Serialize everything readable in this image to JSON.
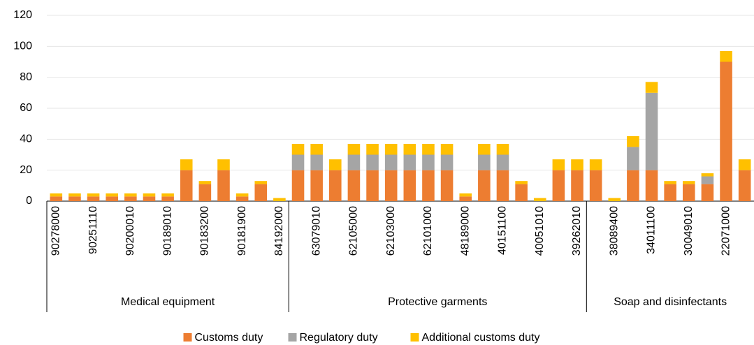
{
  "chart_data": {
    "type": "stacked_bar",
    "groups": [
      {
        "name": "Medical equipment",
        "categories": [
          "90278000",
          null,
          "90251110",
          null,
          "90200010",
          null,
          "90189010",
          null,
          "90183200",
          null,
          "90181900",
          null,
          "84192000"
        ]
      },
      {
        "name": "Protective garments",
        "categories": [
          null,
          "63079010",
          null,
          "62105000",
          null,
          "62103000",
          null,
          "62101000",
          null,
          "48189000",
          null,
          "40151100",
          null,
          "40051010",
          null,
          "39262010"
        ]
      },
      {
        "name": "Soap and disinfectants",
        "categories": [
          null,
          "38089400",
          null,
          "34011100",
          null,
          "30049010",
          null,
          "22071000",
          null
        ]
      }
    ],
    "series": [
      {
        "name": "Customs duty",
        "color": "#ED7D31",
        "values": [
          3,
          3,
          3,
          3,
          3,
          3,
          3,
          20,
          11,
          20,
          3,
          11,
          0,
          20,
          20,
          20,
          20,
          20,
          20,
          20,
          20,
          20,
          3,
          20,
          20,
          11,
          0,
          20,
          20,
          20,
          0,
          20,
          20,
          11,
          11,
          11,
          90,
          20
        ]
      },
      {
        "name": "Regulatory duty",
        "color": "#A5A5A5",
        "values": [
          0,
          0,
          0,
          0,
          0,
          0,
          0,
          0,
          0,
          0,
          0,
          0,
          0,
          10,
          10,
          0,
          10,
          10,
          10,
          10,
          10,
          10,
          0,
          10,
          10,
          0,
          0,
          0,
          0,
          0,
          0,
          15,
          50,
          0,
          0,
          5,
          0,
          0
        ]
      },
      {
        "name": "Additional customs duty",
        "color": "#FFC000",
        "values": [
          2,
          2,
          2,
          2,
          2,
          2,
          2,
          7,
          2,
          7,
          2,
          2,
          2,
          7,
          7,
          7,
          7,
          7,
          7,
          7,
          7,
          7,
          2,
          7,
          7,
          2,
          2,
          7,
          7,
          7,
          2,
          7,
          7,
          2,
          2,
          2,
          7,
          7
        ]
      }
    ],
    "ylim": [
      0,
      120
    ],
    "yticks": [
      0,
      20,
      40,
      60,
      80,
      100,
      120
    ],
    "grid": true
  }
}
